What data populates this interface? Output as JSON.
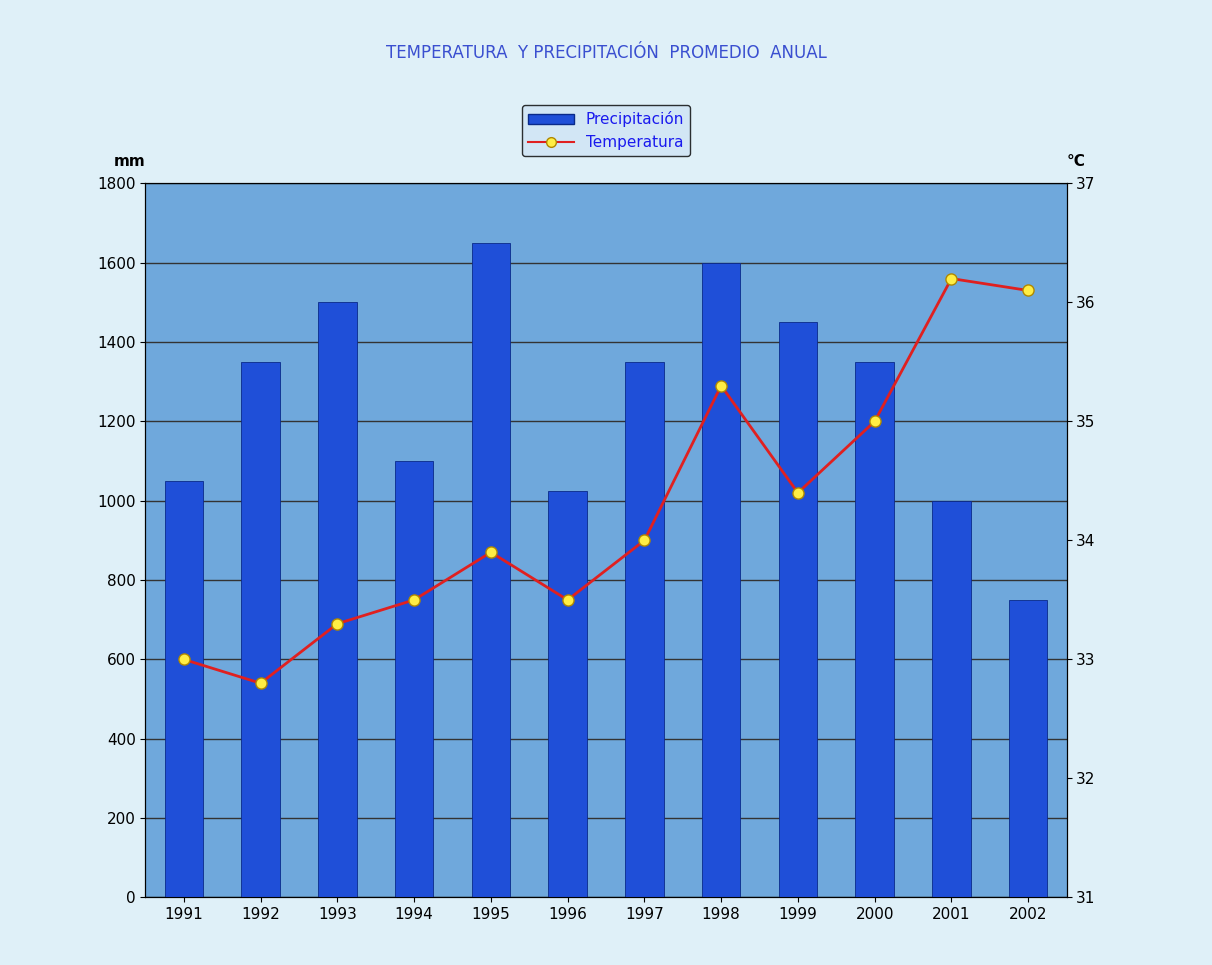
{
  "chart_data": {
    "type": "bar",
    "title": "TEMPERATURA  Y PRECIPITACIÓN  PROMEDIO  ANUAL",
    "y_label": "mm",
    "y2_label": "°C",
    "categories": [
      "1991",
      "1992",
      "1993",
      "1994",
      "1995",
      "1996",
      "1997",
      "1998",
      "1999",
      "2000",
      "2001",
      "2002"
    ],
    "series": [
      {
        "name": "Precipitación",
        "type": "bar",
        "color": "#1f4fd8",
        "values": [
          1050,
          1350,
          1500,
          1100,
          1650,
          1025,
          1350,
          1600,
          1450,
          1350,
          1000,
          750
        ]
      },
      {
        "name": "Temperatura",
        "type": "line",
        "axis": "y2",
        "color": "#e02020",
        "marker": "o",
        "line_style": "solid",
        "values": [
          33.0,
          32.8,
          33.3,
          33.5,
          33.9,
          33.5,
          34.0,
          35.3,
          34.4,
          35.0,
          36.2,
          36.1
        ]
      }
    ],
    "ylim": [
      0,
      1800
    ],
    "yticks": [
      0,
      200,
      400,
      600,
      800,
      1000,
      1200,
      1400,
      1600,
      1800
    ],
    "y2lim": [
      31,
      37
    ],
    "y2ticks": [
      31,
      32,
      33,
      34,
      35,
      36,
      37
    ],
    "grid": true,
    "legend": "upper center"
  }
}
